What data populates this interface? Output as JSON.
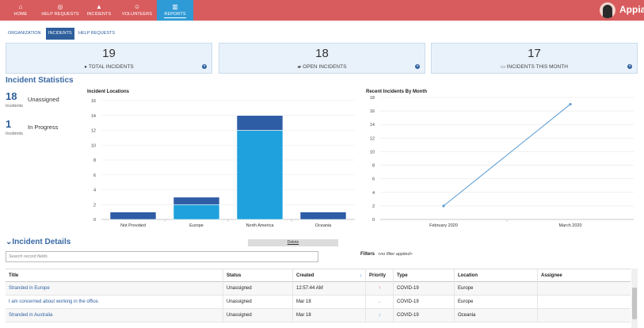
{
  "nav": {
    "items": [
      {
        "label": "HOME",
        "icon": "home-icon",
        "glyph": "⌂"
      },
      {
        "label": "HELP REQUESTS",
        "icon": "globe-icon",
        "glyph": "◎"
      },
      {
        "label": "INCIDENTS",
        "icon": "warning-icon",
        "glyph": "▲"
      },
      {
        "label": "VOLUNTEERS",
        "icon": "volunteer-icon",
        "glyph": "☺"
      },
      {
        "label": "REPORTS",
        "icon": "bar-chart-icon",
        "glyph": "▥"
      }
    ],
    "active": "REPORTS",
    "logo_text": "Appia"
  },
  "subtabs": [
    {
      "label": "ORGANIZATION"
    },
    {
      "label": "INCIDENTS"
    },
    {
      "label": "HELP REQUESTS"
    }
  ],
  "kpis": [
    {
      "value": "19",
      "label": "TOTAL INCIDENTS",
      "icon": "info-icon",
      "glyph": "●"
    },
    {
      "value": "18",
      "label": "OPEN INCIDENTS",
      "icon": "folder-open-icon",
      "glyph": "▰"
    },
    {
      "value": "17",
      "label": "INCIDENTS THIS MONTH",
      "icon": "calendar-icon",
      "glyph": "▭"
    }
  ],
  "kpi_help_glyph": "?",
  "incident_statistics": {
    "title": "Incident Statistics",
    "stats": [
      {
        "value": "18",
        "sub": "Incidents",
        "label": "Unassigned"
      },
      {
        "value": "1",
        "sub": "Incidents",
        "label": "In Progress"
      }
    ]
  },
  "colors": {
    "topbar": "#d85c5d",
    "nav_active": "#2f9bd6",
    "accent": "#2e5f9c",
    "bar_light": "#1ea1dc",
    "bar_dark": "#2a3f5f"
  },
  "chart_data": [
    {
      "type": "bar",
      "stacked": true,
      "title": "Incident Locations",
      "categories": [
        "Not Provided",
        "Europe",
        "North America",
        "Oceania"
      ],
      "series": [
        {
          "values": [
            0,
            2,
            12,
            0
          ],
          "color": "#1ea1dc"
        },
        {
          "values": [
            1,
            1,
            2,
            1
          ],
          "color": "#2e5ca5"
        }
      ],
      "ylim": [
        0,
        16
      ],
      "yticks": [
        0,
        2,
        4,
        6,
        8,
        10,
        12,
        14,
        16
      ],
      "grid": true
    },
    {
      "type": "line",
      "title": "Recent Incidents By Month",
      "x": [
        "February 2020",
        "March 2020"
      ],
      "y": [
        2,
        17
      ],
      "ylim": [
        0,
        18
      ],
      "yticks": [
        0,
        2,
        4,
        6,
        8,
        10,
        12,
        14,
        16,
        18
      ],
      "grid": true,
      "color": "#5b9bd5"
    }
  ],
  "details": {
    "title": "Incident Details",
    "collapse_glyph": "⌄",
    "delete_label": "Delete",
    "search_placeholder": "Search record fields",
    "filters_label": "Filters",
    "filters_value": "<no filter applied>",
    "columns": [
      "Title",
      "Status",
      "Created",
      "Priority",
      "Type",
      "Location",
      "Assignee"
    ],
    "sort_glyph": "↓",
    "rows": [
      {
        "title": "Stranded in Europe",
        "status": "Unassigned",
        "created": "12:57:44 AM",
        "priority": "high",
        "priority_glyph": "↑",
        "type": "COVID-19",
        "location": "Europe",
        "assignee": ""
      },
      {
        "title": "I am concerned about working in the office.",
        "status": "Unassigned",
        "created": "Mar 18",
        "priority": "normal",
        "priority_glyph": "→",
        "type": "COVID-19",
        "location": "Europe",
        "assignee": ""
      },
      {
        "title": "Stranded in Australia",
        "status": "Unassigned",
        "created": "Mar 18",
        "priority": "low",
        "priority_glyph": "↓",
        "type": "COVID-19",
        "location": "Oceania",
        "assignee": ""
      }
    ]
  }
}
